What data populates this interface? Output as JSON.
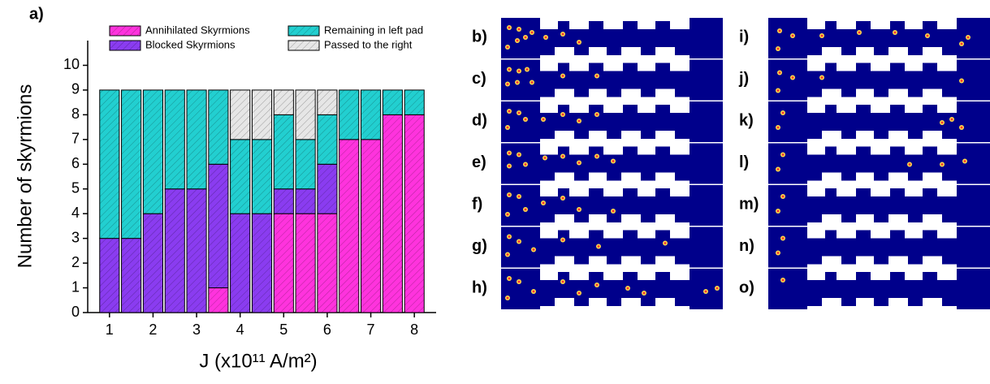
{
  "chart_data": {
    "type": "stacked_bar",
    "annotation": "a)",
    "y_label": "Number of skyrmions",
    "x_label": "J (x10¹¹ A/m²)",
    "x": [
      1,
      1.5,
      2,
      2.5,
      3,
      3.5,
      4,
      4.5,
      5,
      5.5,
      6,
      6.5,
      7,
      7.5,
      8
    ],
    "series": [
      {
        "name": "Annihilated Skyrmions",
        "color": "#ff33dd",
        "values": [
          0,
          0,
          0,
          0,
          0,
          1,
          0,
          0,
          4,
          4,
          4,
          7,
          7,
          8,
          8
        ]
      },
      {
        "name": "Blocked Skyrmions",
        "color": "#8a3cf0",
        "values": [
          3,
          3,
          4,
          5,
          5,
          5,
          4,
          4,
          1,
          1,
          2,
          0,
          0,
          0,
          0
        ]
      },
      {
        "name": "Remaining in left pad",
        "color": "#22cfd0",
        "values": [
          6,
          6,
          5,
          4,
          4,
          3,
          3,
          3,
          3,
          2,
          2,
          2,
          2,
          1,
          1
        ]
      },
      {
        "name": "Passed to the right",
        "color": "#e6e6e6",
        "values": [
          0,
          0,
          0,
          0,
          0,
          0,
          2,
          2,
          1,
          2,
          1,
          0,
          0,
          0,
          0
        ]
      }
    ],
    "xlim": [
      0.5,
      8.5
    ],
    "xticks": [
      1,
      2,
      3,
      4,
      5,
      6,
      7,
      8
    ],
    "ylim": [
      0,
      11
    ],
    "yticks": [
      0,
      1,
      2,
      3,
      4,
      5,
      6,
      7,
      8,
      9,
      10
    ]
  },
  "panels": [
    {
      "label": "b)"
    },
    {
      "label": "c)"
    },
    {
      "label": "d)"
    },
    {
      "label": "e)"
    },
    {
      "label": "f)"
    },
    {
      "label": "g)"
    },
    {
      "label": "h)"
    },
    {
      "label": "i)"
    },
    {
      "label": "j)"
    },
    {
      "label": "k)"
    },
    {
      "label": "l)"
    },
    {
      "label": "m)"
    },
    {
      "label": "n)"
    },
    {
      "label": "o)"
    }
  ]
}
